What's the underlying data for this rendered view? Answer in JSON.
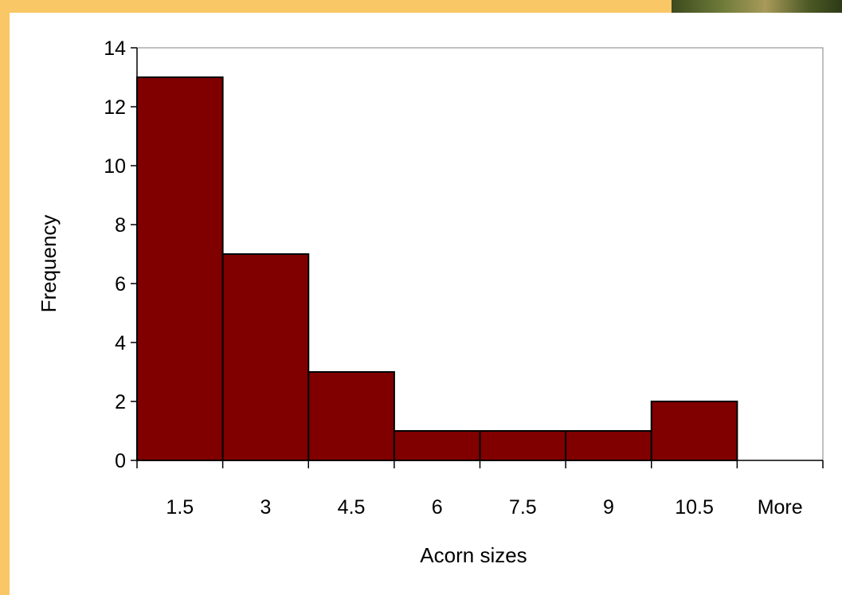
{
  "chart_data": {
    "type": "bar",
    "categories": [
      "1.5",
      "3",
      "4.5",
      "6",
      "7.5",
      "9",
      "10.5",
      "More"
    ],
    "values": [
      13,
      7,
      3,
      1,
      1,
      1,
      2,
      0
    ],
    "title": "",
    "xlabel": "Acorn sizes",
    "ylabel": "Frequency",
    "ylim": [
      0,
      14
    ],
    "yticks": [
      "0",
      "2",
      "4",
      "6",
      "8",
      "10",
      "12",
      "14"
    ],
    "grid": false,
    "bar_color": "#800000",
    "bar_edge_color": "#000000",
    "plot_border_color": "#808080"
  },
  "colors": {
    "background": "#f9c766",
    "panel": "#ffffff"
  }
}
